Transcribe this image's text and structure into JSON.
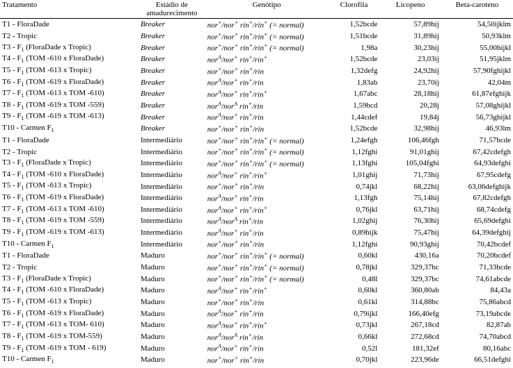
{
  "header": {
    "tratamento": "Tratamento",
    "estadio_l1": "Estádio de",
    "estadio_l2": "amadurecimento",
    "genotipo": "Genótipo",
    "clorofila": "Clorofila",
    "licopeno": "Licopeno",
    "betacaroteno": "Beta-caroteno"
  },
  "rows": [
    {
      "t": "T1 - FloraDade",
      "e": "Breaker",
      "g": "nor⁺/nor⁺ rin⁺/rin⁺ (= normal)",
      "c": "1,52bcde",
      "l": "57,89hij",
      "b": "54,50ijklm"
    },
    {
      "t": "T2 - Tropic",
      "e": "Breaker",
      "g": "nor⁺/nor⁺ rin⁺/rin⁺ (= normal)",
      "c": "1,51bcde",
      "l": "31,89hij",
      "b": "50,93klm"
    },
    {
      "t": "T3 - F₁ (FloraDade x Tropic)",
      "e": "Breaker",
      "g": "nor⁺/nor⁺ rin⁺/rin⁺ (= normal)",
      "c": "1,98a",
      "l": "30,23hij",
      "b": "55,00hijkl"
    },
    {
      "t": "T4 - F₁ (TOM -610 x  FloraDade)",
      "e": "Breaker",
      "g": "norᴬ/nor⁺ rin⁺/rin⁺",
      "c": "1,52bcde",
      "l": "23,03ij",
      "b": "51,95jklm"
    },
    {
      "t": "T5 - F₁ (TOM -613 x Tropic)",
      "e": "Breaker",
      "g": "nor⁺/nor⁺ rin⁺/rin",
      "c": "1,32defg",
      "l": "24,92hij",
      "b": "57,90fghijkl"
    },
    {
      "t": "T6 - F₁ (TOM -619 x FloraDade)",
      "e": "Breaker",
      "g": "norᴬ/nor⁺ rin⁺/rin",
      "c": "1,83ab",
      "l": "23,70ij",
      "b": "42,04m"
    },
    {
      "t": "T7 - F₁ (TOM -613 x TOM -610)",
      "e": "Breaker",
      "g": "norᴬ/nor⁺ rin⁺/rin⁺",
      "c": "1,67abc",
      "l": "28,18hij",
      "b": "61,87efghijk"
    },
    {
      "t": "T8 - F₁ (TOM -619 x TOM -559)",
      "e": "Breaker",
      "g": "norᴬ/norᴬ rin⁺/rin",
      "c": "1,59bcd",
      "l": "20,28j",
      "b": "57,08ghijkl"
    },
    {
      "t": "T9 - F₁ (TOM -619 x TOM -613)",
      "e": "Breaker",
      "g": "norᴬ/nor⁺ rin⁺/rin",
      "c": "1,44cdef",
      "l": "19,84j",
      "b": "56,73ghijkl"
    },
    {
      "t": "T10 - Carmen F₁",
      "e": "Breaker",
      "g": "nor⁺/nor⁺ rin⁺/rin",
      "c": "1,52bcde",
      "l": "32,98hij",
      "b": "46,93lm"
    },
    {
      "t": "T1 - FloraDade",
      "e": "Intermediário",
      "g": "nor⁺/nor⁺ rin⁺/rin⁺ (= normal)",
      "c": "1,24efgh",
      "l": "106,46fgh",
      "b": "71,57bcde"
    },
    {
      "t": "T2 - Tropic",
      "e": "Intermediário",
      "g": "nor⁺/nor⁺ rin⁺/rin⁺ (= normal)",
      "c": "1,12fghi",
      "l": "91,01ghij",
      "b": "67,42cdefgh"
    },
    {
      "t": "T3 - F₁ (FloraDade x Tropic)",
      "e": "Intermediário",
      "g": "nor⁺/nor⁺ rin⁺/rin⁺ (= normal)",
      "c": "1,13fghi",
      "l": "105,04fghi",
      "b": "64,93defghi"
    },
    {
      "t": "T4 - F₁ (TOM -610 x FloraDade)",
      "e": "Intermediário",
      "g": "norᴬ/nor⁺ rin⁺/rin⁺",
      "c": "1,01ghij",
      "l": "71,73hij",
      "b": "67,95cdefg"
    },
    {
      "t": "T5 - F₁ (TOM -613 x Tropic)",
      "e": "Intermediário",
      "g": "nor⁺/nor⁺ rin⁺/rin",
      "c": "0,74jkl",
      "l": "68,22hij",
      "b": "63,06defghijk"
    },
    {
      "t": "T6 - F₁ (TOM -619 x FloraDade)",
      "e": "Intermediário",
      "g": "norᴬ/nor⁺ rin⁺/rin",
      "c": "1,13fgh",
      "l": "75,14hij",
      "b": "67,82cdefgh"
    },
    {
      "t": "T7 - F₁ (TOM -613 x TOM -610)",
      "e": "Intermediário",
      "g": "norᴬ/nor⁺ rin⁺/rin⁺",
      "c": "0,76jkl",
      "l": "63,71hij",
      "b": "68,74cdefg"
    },
    {
      "t": "T8 - F₁ (TOM -619 x TOM -559)",
      "e": "Intermediário",
      "g": "norᴬ/norᴬ rin⁺/rin",
      "c": "1,02ghij",
      "l": "76,30hij",
      "b": "65,69defghi"
    },
    {
      "t": "T9 - F₁ (TOM -619 x TOM -613)",
      "e": "Intermediário",
      "g": "norᴬ/nor⁺ rin⁺/rin",
      "c": "0,89hijk",
      "l": "75,47hij",
      "b": "64,39defghij"
    },
    {
      "t": "T10 - Carmen F₁",
      "e": "Intermediário",
      "g": "nor⁺/nor⁺ rin⁺/rin",
      "c": "1,12fghi",
      "l": "90,93ghij",
      "b": "70,42bcdef"
    },
    {
      "t": "T1 - FloraDade",
      "e": "Maduro",
      "g": "nor⁺/nor⁺ rin⁺/rin⁺ (= normal)",
      "c": "0,60kl",
      "l": "430,16a",
      "b": "70,20bcdef"
    },
    {
      "t": "T2 - Tropic",
      "e": "Maduro",
      "g": "nor⁺/nor⁺ rin⁺/rin⁺ (= normal)",
      "c": "0,78jkl",
      "l": "329,37bc",
      "b": "71,33bcde"
    },
    {
      "t": "T3 - F₁ (FloraDade x Tropic)",
      "e": "Maduro",
      "g": "nor⁺/nor⁺ rin⁺/rin⁺ (= normal)",
      "c": "0,48l",
      "l": "329,37bc",
      "b": "74,61abcde"
    },
    {
      "t": "T4 - F₁ (TOM -610 x FloraDade)",
      "e": "Maduro",
      "g": "norᴬ/nor⁺ rin⁺/rin⁺",
      "c": "0,60kl",
      "l": "360,80ab",
      "b": "84,43a"
    },
    {
      "t": "T5 - F₁ (TOM -613 x Tropic)",
      "e": "Maduro",
      "g": "nor⁺/nor⁺ rin⁺/rin",
      "c": "0,61kl",
      "l": "314,88bc",
      "b": "75,86abcd"
    },
    {
      "t": "T6 - F₁ (TOM -619 x FloraDade)",
      "e": "Maduro",
      "g": "norᴬ/nor⁺ rin⁺/rin",
      "c": "0,79ijkl",
      "l": "166,40efg",
      "b": "73,19abcde"
    },
    {
      "t": "T7 - F₁ (TOM -613 x TOM- 610)",
      "e": "Maduro",
      "g": "norᴬ/nor⁺ rin⁺/rin⁺",
      "c": "0,73jkl",
      "l": "267,18cd",
      "b": "82,87ab"
    },
    {
      "t": "T8 - F₁ (TOM -619 x TOM-559)",
      "e": "Maduro",
      "g": "norᴬ/norᴬ rin⁺/rin",
      "c": "0,66kl",
      "l": "272,68cd",
      "b": "74,70abcd"
    },
    {
      "t": "T9 - F₁ (TOM -619 x TOM - 619)",
      "e": "Maduro",
      "g": "norᴬ/nor⁺ rin⁺/rin",
      "c": "0,52l",
      "l": "181,32ef",
      "b": "80,16abc"
    },
    {
      "t": "T10 - Carmen F₁",
      "e": "Maduro",
      "g": "nor⁺/nor⁺ rin⁺/rin",
      "c": "0,70jkl",
      "l": "223,96de",
      "b": "66,51defghi"
    }
  ],
  "style": {
    "font_family": "Times New Roman",
    "font_size_pt": 9,
    "text_color": "#000000",
    "background_color": "#ffffff",
    "border_color": "#000000",
    "col_widths_pct": [
      27,
      13,
      24,
      10,
      12,
      14
    ]
  }
}
